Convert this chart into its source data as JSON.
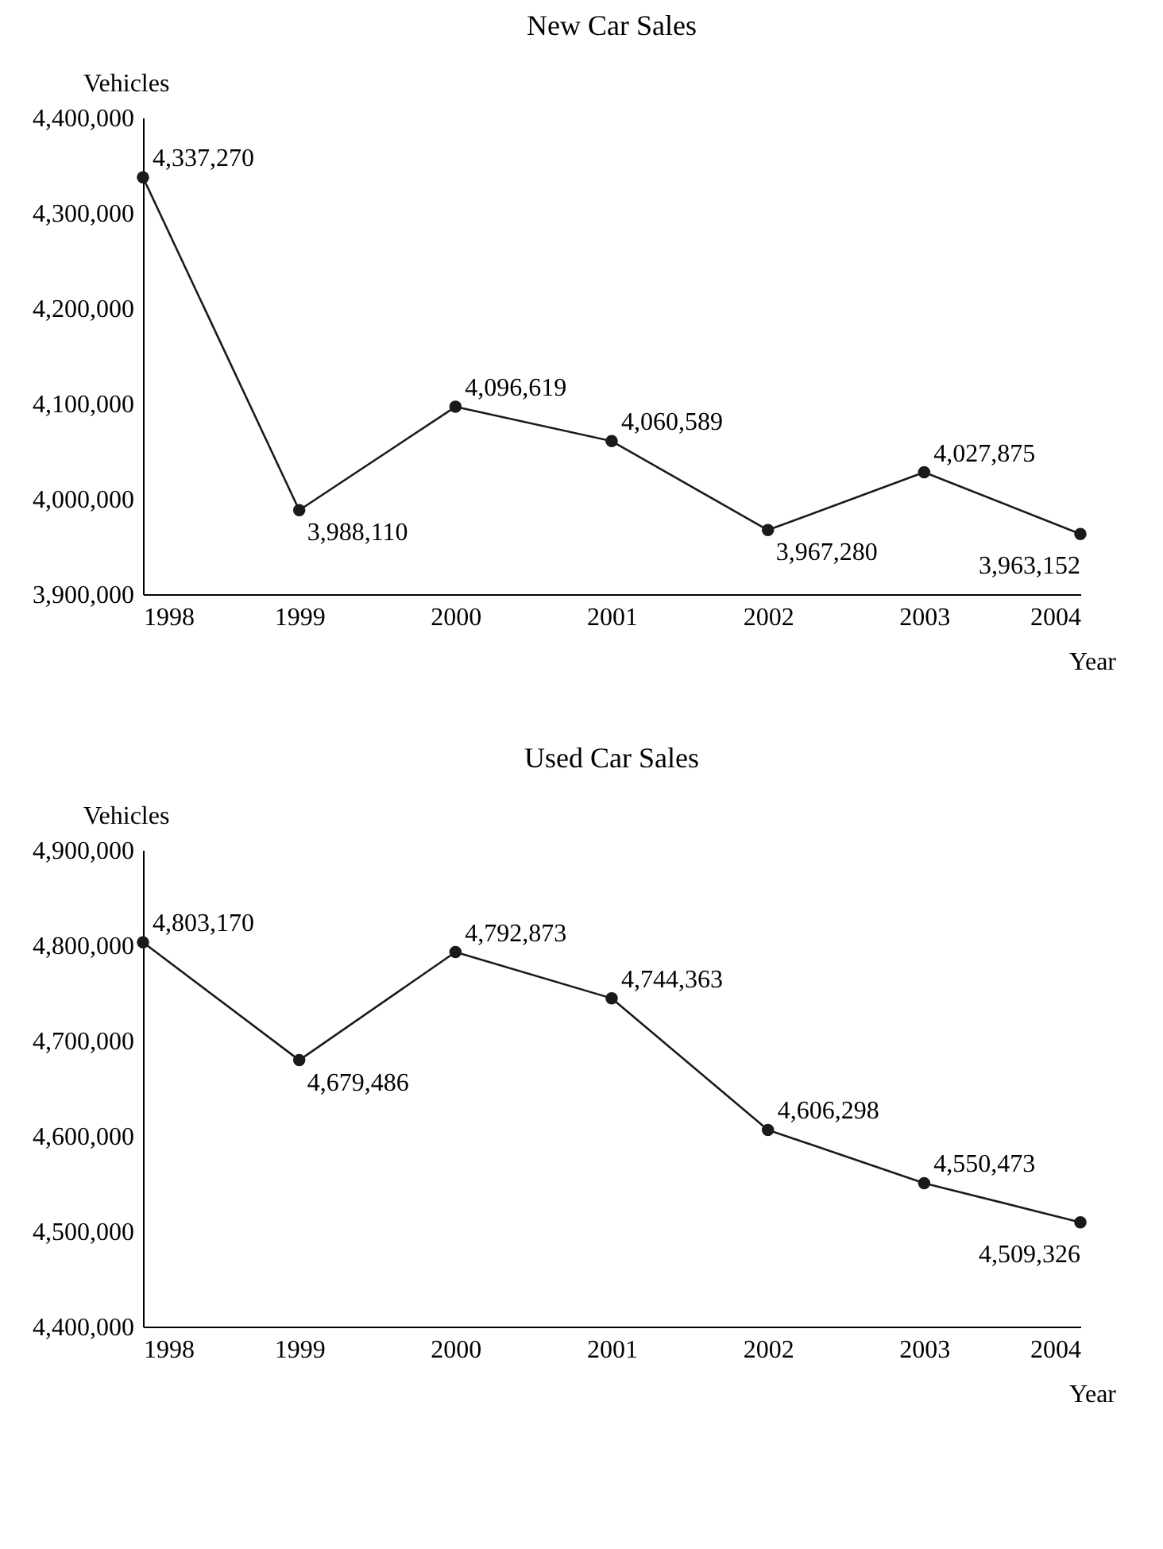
{
  "chart_data": [
    {
      "type": "line",
      "title": "New Car Sales",
      "xlabel": "Year",
      "ylabel": "Vehicles",
      "x": [
        1998,
        1999,
        2000,
        2001,
        2002,
        2003,
        2004
      ],
      "xlim": [
        1998,
        2004
      ],
      "xticks": [
        1998,
        1999,
        2000,
        2001,
        2002,
        2003,
        2004
      ],
      "ylim": [
        3900000,
        4400000
      ],
      "yticks": [
        {
          "value": 3900000,
          "label": "3,900,000"
        },
        {
          "value": 4000000,
          "label": "4,000,000"
        },
        {
          "value": 4100000,
          "label": "4,100,000"
        },
        {
          "value": 4200000,
          "label": "4,200,000"
        },
        {
          "value": 4300000,
          "label": "4,300,000"
        },
        {
          "value": 4400000,
          "label": "4,400,000"
        }
      ],
      "grid": false,
      "marker": "circle",
      "line_style": "solid",
      "series": [
        {
          "color": "#1a1a1a",
          "values": [
            4337270,
            3988110,
            4096619,
            4060589,
            3967280,
            4027875,
            3963152
          ],
          "value_labels": [
            "4,337,270",
            "3,988,110",
            "4,096,619",
            "4,060,589",
            "3,967,280",
            "4,027,875",
            "3,963,152"
          ]
        }
      ]
    },
    {
      "type": "line",
      "title": "Used Car Sales",
      "xlabel": "Year",
      "ylabel": "Vehicles",
      "x": [
        1998,
        1999,
        2000,
        2001,
        2002,
        2003,
        2004
      ],
      "xlim": [
        1998,
        2004
      ],
      "xticks": [
        1998,
        1999,
        2000,
        2001,
        2002,
        2003,
        2004
      ],
      "ylim": [
        4400000,
        4900000
      ],
      "yticks": [
        {
          "value": 4400000,
          "label": "4,400,000"
        },
        {
          "value": 4500000,
          "label": "4,500,000"
        },
        {
          "value": 4600000,
          "label": "4,600,000"
        },
        {
          "value": 4700000,
          "label": "4,700,000"
        },
        {
          "value": 4800000,
          "label": "4,800,000"
        },
        {
          "value": 4900000,
          "label": "4,900,000"
        }
      ],
      "grid": false,
      "marker": "circle",
      "line_style": "solid",
      "series": [
        {
          "color": "#1a1a1a",
          "values": [
            4803170,
            4679486,
            4792873,
            4744363,
            4606298,
            4550473,
            4509326
          ],
          "value_labels": [
            "4,803,170",
            "4,679,486",
            "4,792,873",
            "4,744,363",
            "4,606,298",
            "4,550,473",
            "4,509,326"
          ]
        }
      ]
    }
  ]
}
